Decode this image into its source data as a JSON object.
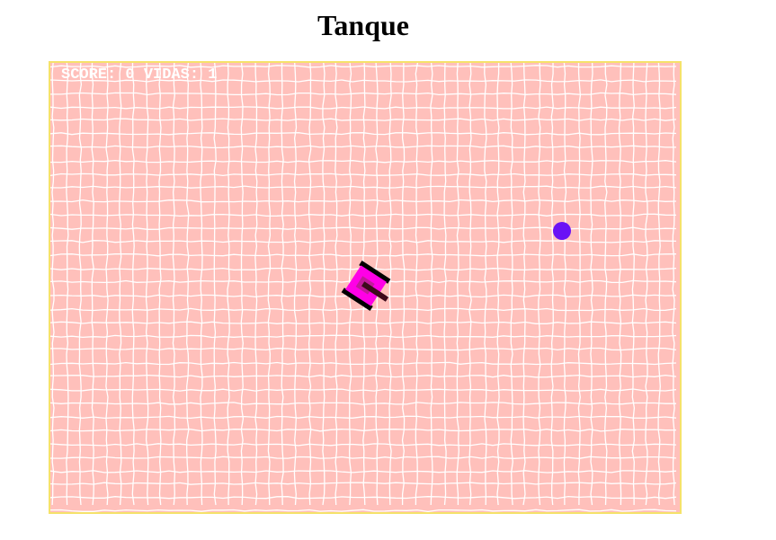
{
  "page": {
    "title": "Tanque"
  },
  "hud": {
    "score_label": "SCORE:",
    "score_value": "0",
    "lives_label": "VIDAS:",
    "lives_value": "1"
  },
  "colors": {
    "background": "#ffc0bb",
    "grid_lines": "#ffffff",
    "border": "#f5e26a",
    "tank_body": "#ff00e6",
    "tank_tracks": "#000000",
    "tank_turret": "#3d0a1a",
    "enemy_ball": "#6a12f5"
  },
  "icons": {
    "player": "tank-icon",
    "enemy": "ball-icon"
  }
}
